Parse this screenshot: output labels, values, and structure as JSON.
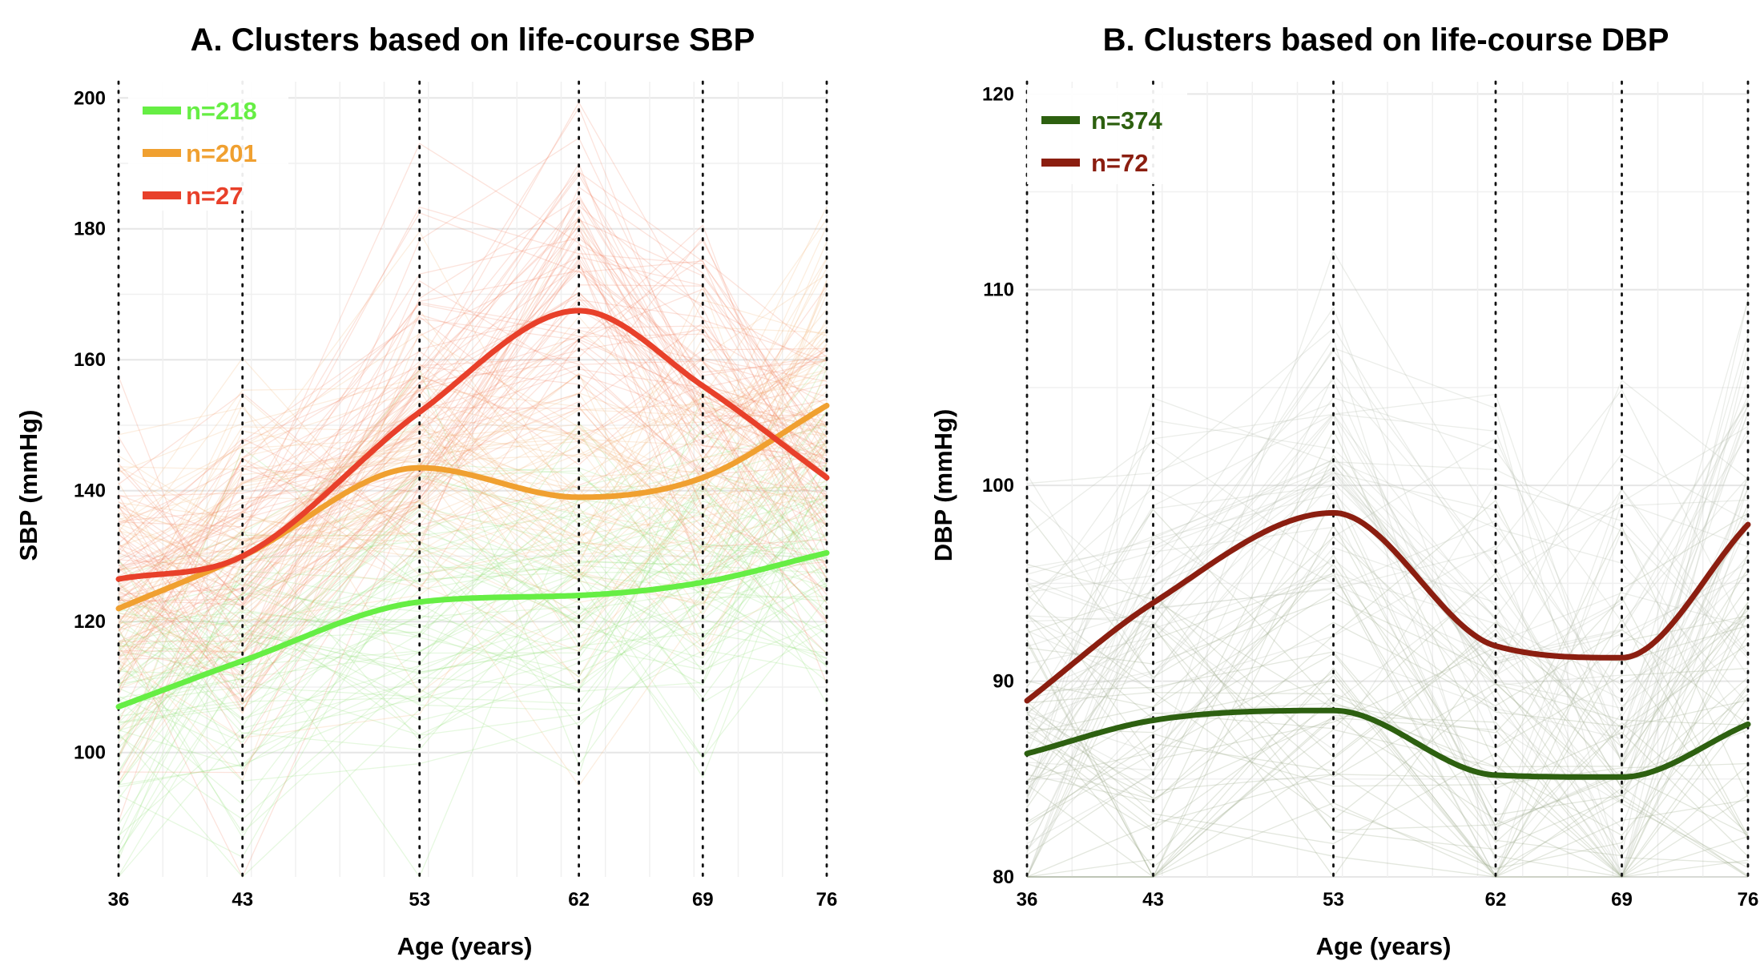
{
  "chart_data": [
    {
      "type": "line",
      "title": "A. Clusters based on life-course SBP",
      "xlabel": "Age (years)",
      "ylabel": "SBP (mmHg)",
      "x_ticks": [
        36,
        43,
        53,
        62,
        69,
        76
      ],
      "y_ticks": [
        100,
        120,
        140,
        160,
        180,
        200
      ],
      "xlim": [
        36,
        76
      ],
      "ylim": [
        81,
        201.5
      ],
      "grid": true,
      "legend_position": "top-left",
      "series": [
        {
          "name": "n=218",
          "color": "#66ee44",
          "x": [
            36,
            43,
            53,
            62,
            69,
            76
          ],
          "y": [
            107,
            114,
            123,
            124,
            126,
            130.5
          ]
        },
        {
          "name": "n=201",
          "color": "#f0a030",
          "x": [
            36,
            43,
            53,
            62,
            69,
            76
          ],
          "y": [
            122,
            130,
            143.5,
            139,
            142,
            153
          ]
        },
        {
          "name": "n=27",
          "color": "#e8402a",
          "x": [
            36,
            43,
            53,
            62,
            69,
            76
          ],
          "y": [
            126.5,
            130,
            152,
            167.5,
            156,
            142
          ]
        }
      ]
    },
    {
      "type": "line",
      "title": "B. Clusters based on life-course DBP",
      "xlabel": "Age (years)",
      "ylabel": "DBP (mmHg)",
      "x_ticks": [
        36,
        43,
        53,
        62,
        69,
        76
      ],
      "y_ticks": [
        80,
        90,
        100,
        110,
        120
      ],
      "xlim": [
        36,
        76
      ],
      "ylim": [
        80,
        120.3
      ],
      "grid": true,
      "legend_position": "top-left",
      "series": [
        {
          "name": "n=374",
          "color": "#2d6010",
          "x": [
            36,
            43,
            53,
            62,
            69,
            76
          ],
          "y": [
            86.3,
            88,
            88.5,
            85.2,
            85.1,
            87.8
          ]
        },
        {
          "name": "n=72",
          "color": "#8b1e10",
          "x": [
            36,
            43,
            53,
            62,
            69,
            76
          ],
          "y": [
            89,
            94,
            98.6,
            91.8,
            91.2,
            98
          ]
        }
      ]
    }
  ]
}
